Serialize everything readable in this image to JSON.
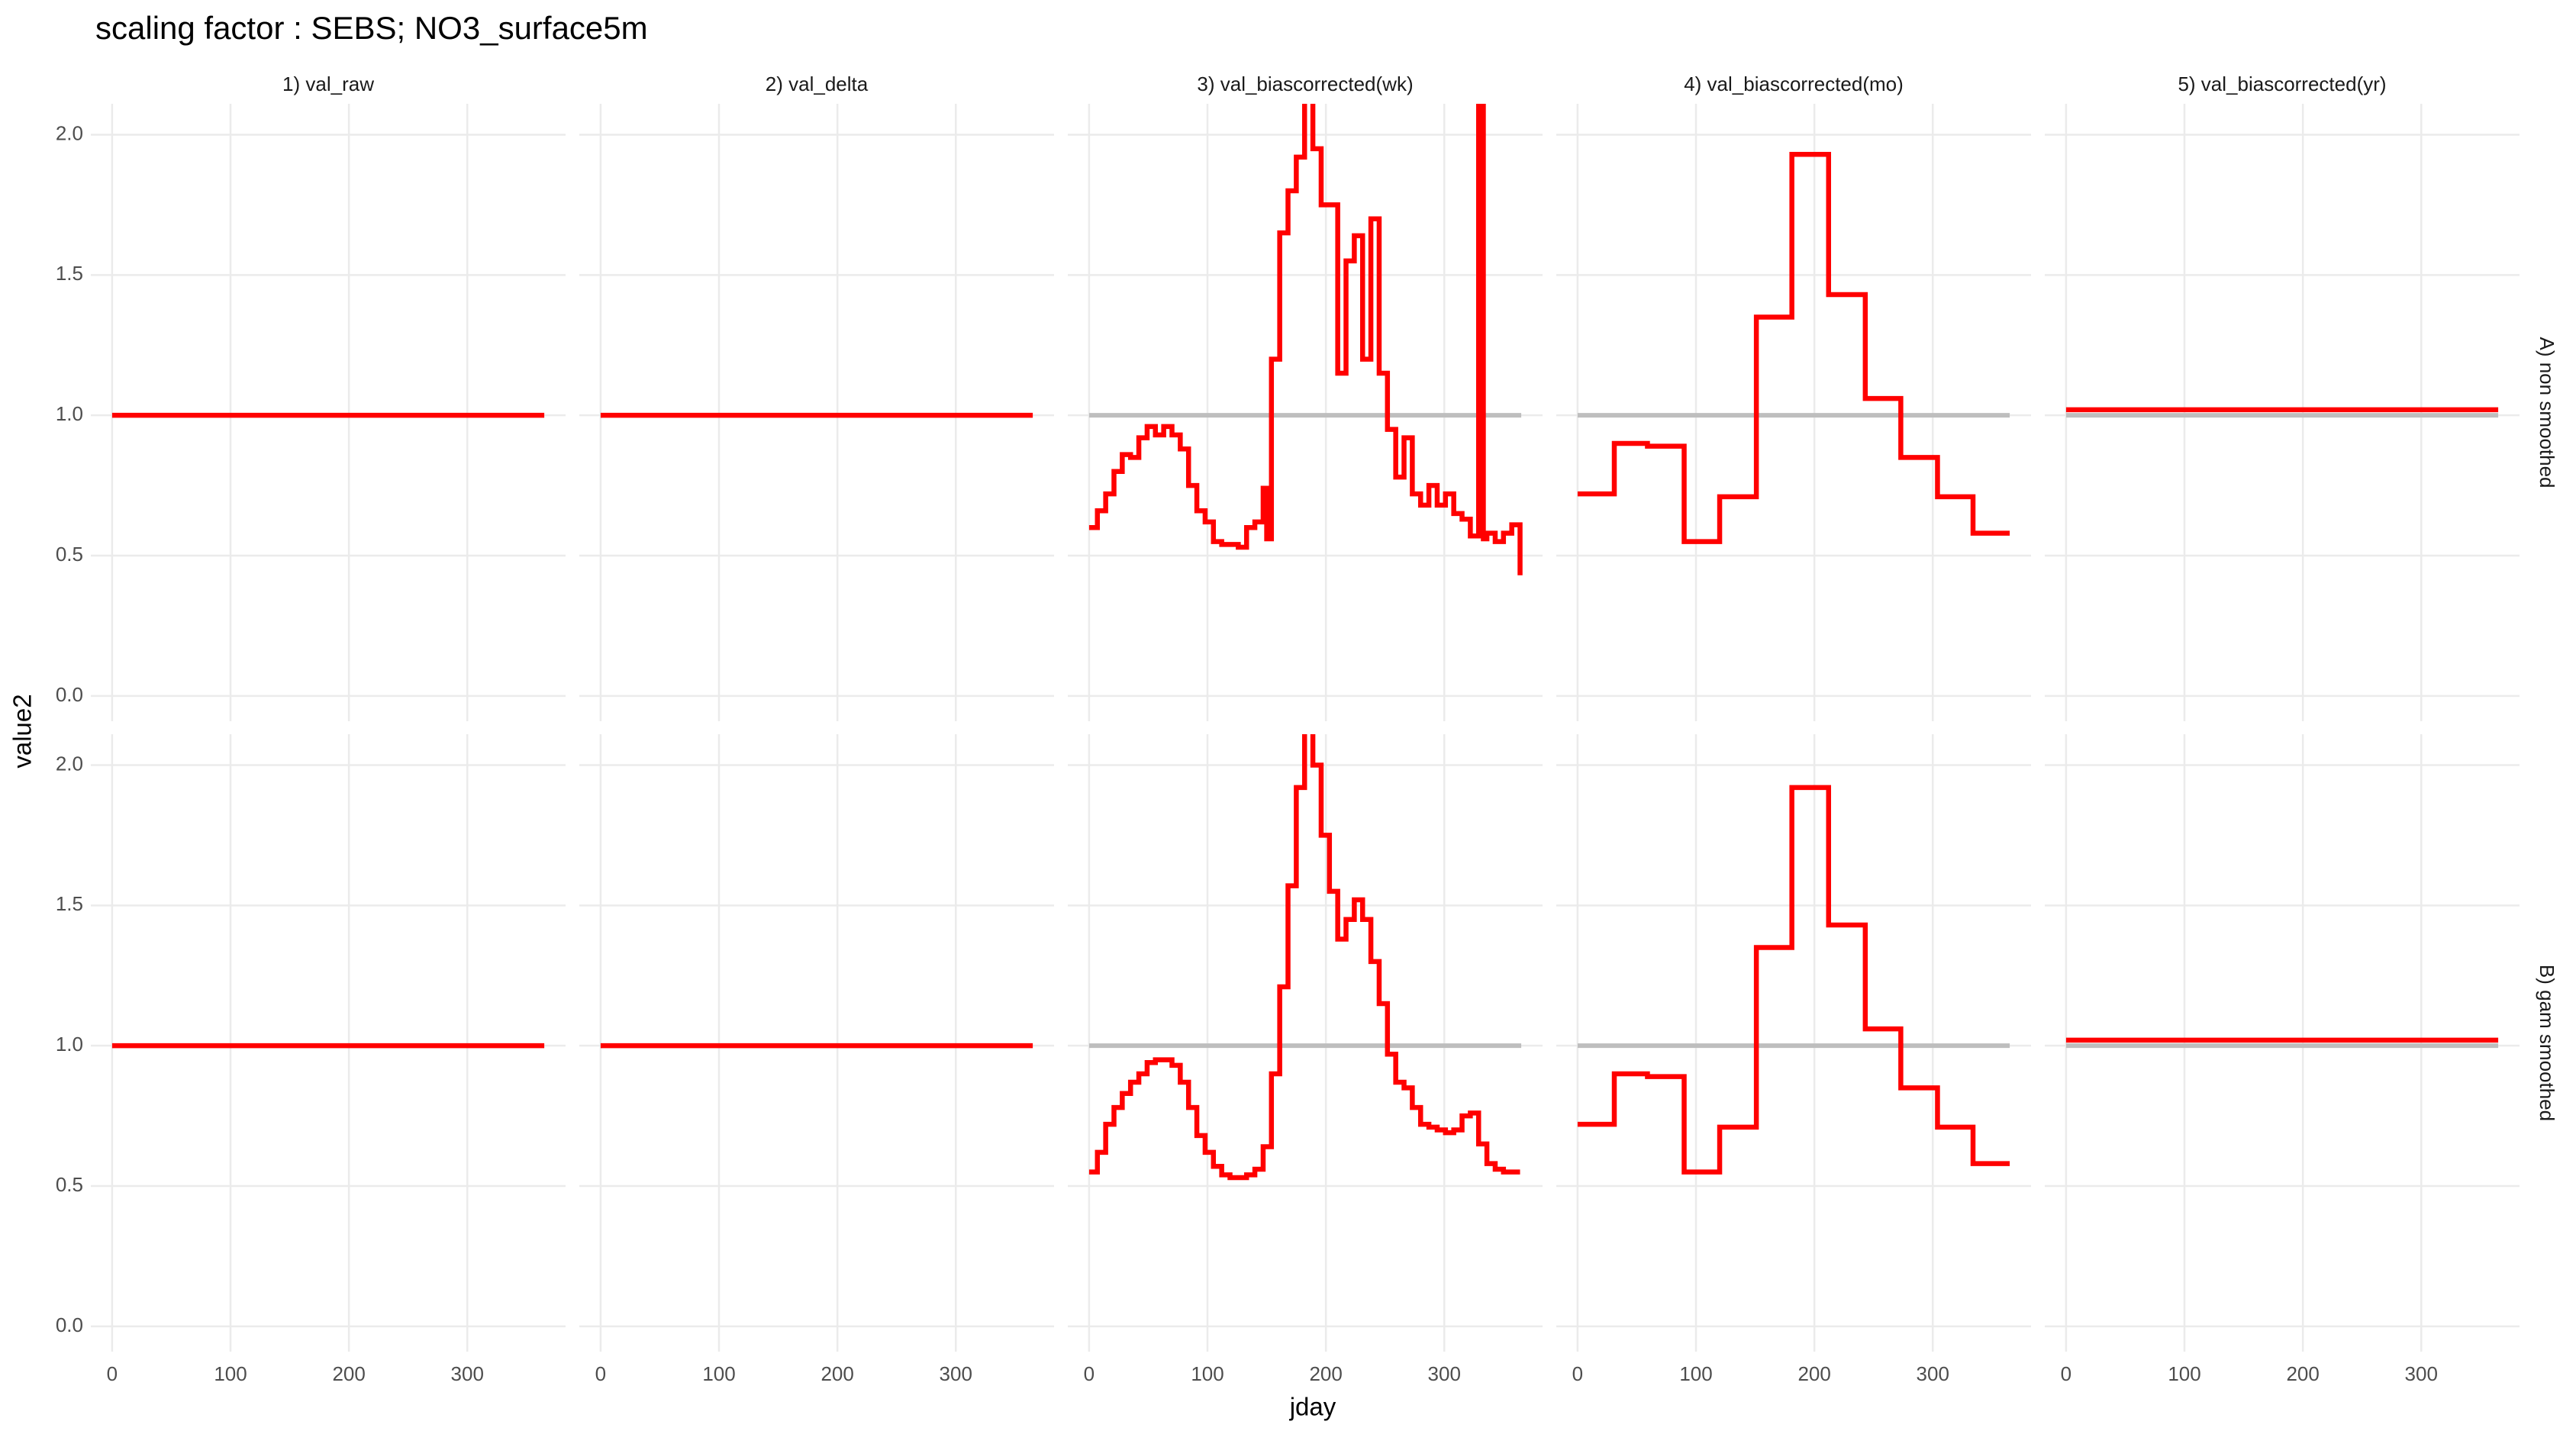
{
  "chart_data": {
    "type": "step",
    "title": "scaling factor : SEBS; NO3_surface5m",
    "xlabel": "jday",
    "ylabel": "value2",
    "xlim": [
      -18,
      383
    ],
    "ylim": [
      -0.09,
      2.11
    ],
    "xticks": [
      0,
      100,
      200,
      300
    ],
    "yticks": [
      {
        "value": 0,
        "label": "0.0"
      },
      0.5,
      {
        "value": 1,
        "label": "1.0"
      },
      1.5,
      {
        "value": 2,
        "label": "2.0"
      }
    ],
    "grid": true,
    "columns": [
      "1) val_raw",
      "2) val_delta",
      "3) val_biascorrected(wk)",
      "4) val_biascorrected(mo)",
      "5) val_biascorrected(yr)"
    ],
    "rows": [
      {
        "label": "A) non smoothed",
        "panels": [
          {
            "series": [
              {
                "color": "#bebebe",
                "x": [
                  0,
                  365
                ],
                "values": [
                  1,
                  1
                ]
              },
              {
                "color": "#ff0000",
                "x": [
                  0,
                  365
                ],
                "values": [
                  1,
                  1
                ]
              }
            ]
          },
          {
            "series": [
              {
                "color": "#bebebe",
                "x": [
                  0,
                  365
                ],
                "values": [
                  1,
                  1
                ]
              },
              {
                "color": "#ff0000",
                "x": [
                  0,
                  365
                ],
                "values": [
                  1,
                  1
                ]
              }
            ]
          },
          {
            "series": [
              {
                "color": "#bebebe",
                "x": [
                  0,
                  365
                ],
                "values": [
                  1,
                  1
                ]
              },
              {
                "color": "#ff0000",
                "x": [
                  0,
                  7,
                  14,
                  21,
                  28,
                  35,
                  42,
                  49,
                  56,
                  63,
                  70,
                  77,
                  84,
                  91,
                  98,
                  105,
                  112,
                  119,
                  126,
                  133,
                  140,
                  147,
                  150,
                  154,
                  161,
                  168,
                  175,
                  182,
                  189,
                  196,
                  203,
                  210,
                  217,
                  224,
                  231,
                  238,
                  245,
                  252,
                  259,
                  266,
                  273,
                  280,
                  287,
                  294,
                  301,
                  308,
                  315,
                  322,
                  329,
                  333,
                  336,
                  343,
                  350,
                  357,
                  364
                ],
                "values": [
                  0.6,
                  0.66,
                  0.72,
                  0.8,
                  0.86,
                  0.85,
                  0.92,
                  0.96,
                  0.93,
                  0.96,
                  0.93,
                  0.88,
                  0.75,
                  0.66,
                  0.62,
                  0.55,
                  0.54,
                  0.54,
                  0.53,
                  0.6,
                  0.62,
                  0.74,
                  0.56,
                  1.2,
                  1.65,
                  1.8,
                  1.92,
                  2.2,
                  1.95,
                  1.75,
                  1.75,
                  1.15,
                  1.55,
                  1.64,
                  1.2,
                  1.7,
                  1.15,
                  0.95,
                  0.78,
                  0.92,
                  0.72,
                  0.68,
                  0.75,
                  0.68,
                  0.72,
                  0.65,
                  0.63,
                  0.57,
                  2.2,
                  0.56,
                  0.58,
                  0.55,
                  0.58,
                  0.61,
                  0.43
                ]
              }
            ]
          },
          {
            "series": [
              {
                "color": "#bebebe",
                "x": [
                  0,
                  365
                ],
                "values": [
                  1,
                  1
                ]
              },
              {
                "color": "#ff0000",
                "x": [
                  0,
                  31,
                  59,
                  90,
                  120,
                  151,
                  181,
                  212,
                  243,
                  273,
                  304,
                  334,
                  365
                ],
                "values": [
                  0.72,
                  0.9,
                  0.89,
                  0.55,
                  0.71,
                  1.35,
                  1.93,
                  1.43,
                  1.06,
                  0.85,
                  0.71,
                  0.58,
                  0.58
                ]
              }
            ]
          },
          {
            "series": [
              {
                "color": "#bebebe",
                "x": [
                  0,
                  365
                ],
                "values": [
                  1,
                  1
                ]
              },
              {
                "color": "#ff0000",
                "x": [
                  0,
                  365
                ],
                "values": [
                  1.02,
                  1.02
                ]
              }
            ]
          }
        ]
      },
      {
        "label": "B) gam smoothed",
        "panels": [
          {
            "series": [
              {
                "color": "#bebebe",
                "x": [
                  0,
                  365
                ],
                "values": [
                  1,
                  1
                ]
              },
              {
                "color": "#ff0000",
                "x": [
                  0,
                  365
                ],
                "values": [
                  1,
                  1
                ]
              }
            ]
          },
          {
            "series": [
              {
                "color": "#bebebe",
                "x": [
                  0,
                  365
                ],
                "values": [
                  1,
                  1
                ]
              },
              {
                "color": "#ff0000",
                "x": [
                  0,
                  365
                ],
                "values": [
                  1,
                  1
                ]
              }
            ]
          },
          {
            "series": [
              {
                "color": "#bebebe",
                "x": [
                  0,
                  365
                ],
                "values": [
                  1,
                  1
                ]
              },
              {
                "color": "#ff0000",
                "x": [
                  0,
                  7,
                  14,
                  21,
                  28,
                  35,
                  42,
                  49,
                  56,
                  63,
                  70,
                  77,
                  84,
                  91,
                  98,
                  105,
                  112,
                  119,
                  126,
                  133,
                  140,
                  147,
                  154,
                  161,
                  168,
                  175,
                  182,
                  189,
                  196,
                  203,
                  210,
                  217,
                  224,
                  231,
                  238,
                  245,
                  252,
                  259,
                  266,
                  273,
                  280,
                  287,
                  294,
                  301,
                  308,
                  315,
                  322,
                  329,
                  336,
                  343,
                  350,
                  357,
                  364
                ],
                "values": [
                  0.55,
                  0.62,
                  0.72,
                  0.78,
                  0.83,
                  0.87,
                  0.9,
                  0.94,
                  0.95,
                  0.95,
                  0.93,
                  0.87,
                  0.78,
                  0.68,
                  0.62,
                  0.57,
                  0.54,
                  0.53,
                  0.53,
                  0.54,
                  0.56,
                  0.64,
                  0.9,
                  1.21,
                  1.57,
                  1.92,
                  2.2,
                  2.0,
                  1.75,
                  1.55,
                  1.38,
                  1.45,
                  1.52,
                  1.45,
                  1.3,
                  1.15,
                  0.97,
                  0.87,
                  0.85,
                  0.78,
                  0.72,
                  0.71,
                  0.7,
                  0.69,
                  0.7,
                  0.75,
                  0.76,
                  0.65,
                  0.58,
                  0.56,
                  0.55,
                  0.55,
                  0.55
                ]
              }
            ]
          },
          {
            "series": [
              {
                "color": "#bebebe",
                "x": [
                  0,
                  365
                ],
                "values": [
                  1,
                  1
                ]
              },
              {
                "color": "#ff0000",
                "x": [
                  0,
                  31,
                  59,
                  90,
                  120,
                  151,
                  181,
                  212,
                  243,
                  273,
                  304,
                  334,
                  365
                ],
                "values": [
                  0.72,
                  0.9,
                  0.89,
                  0.55,
                  0.71,
                  1.35,
                  1.92,
                  1.43,
                  1.06,
                  0.85,
                  0.71,
                  0.58,
                  0.58
                ]
              }
            ]
          },
          {
            "series": [
              {
                "color": "#bebebe",
                "x": [
                  0,
                  365
                ],
                "values": [
                  1,
                  1
                ]
              },
              {
                "color": "#ff0000",
                "x": [
                  0,
                  365
                ],
                "values": [
                  1.02,
                  1.02
                ]
              }
            ]
          }
        ]
      }
    ]
  }
}
